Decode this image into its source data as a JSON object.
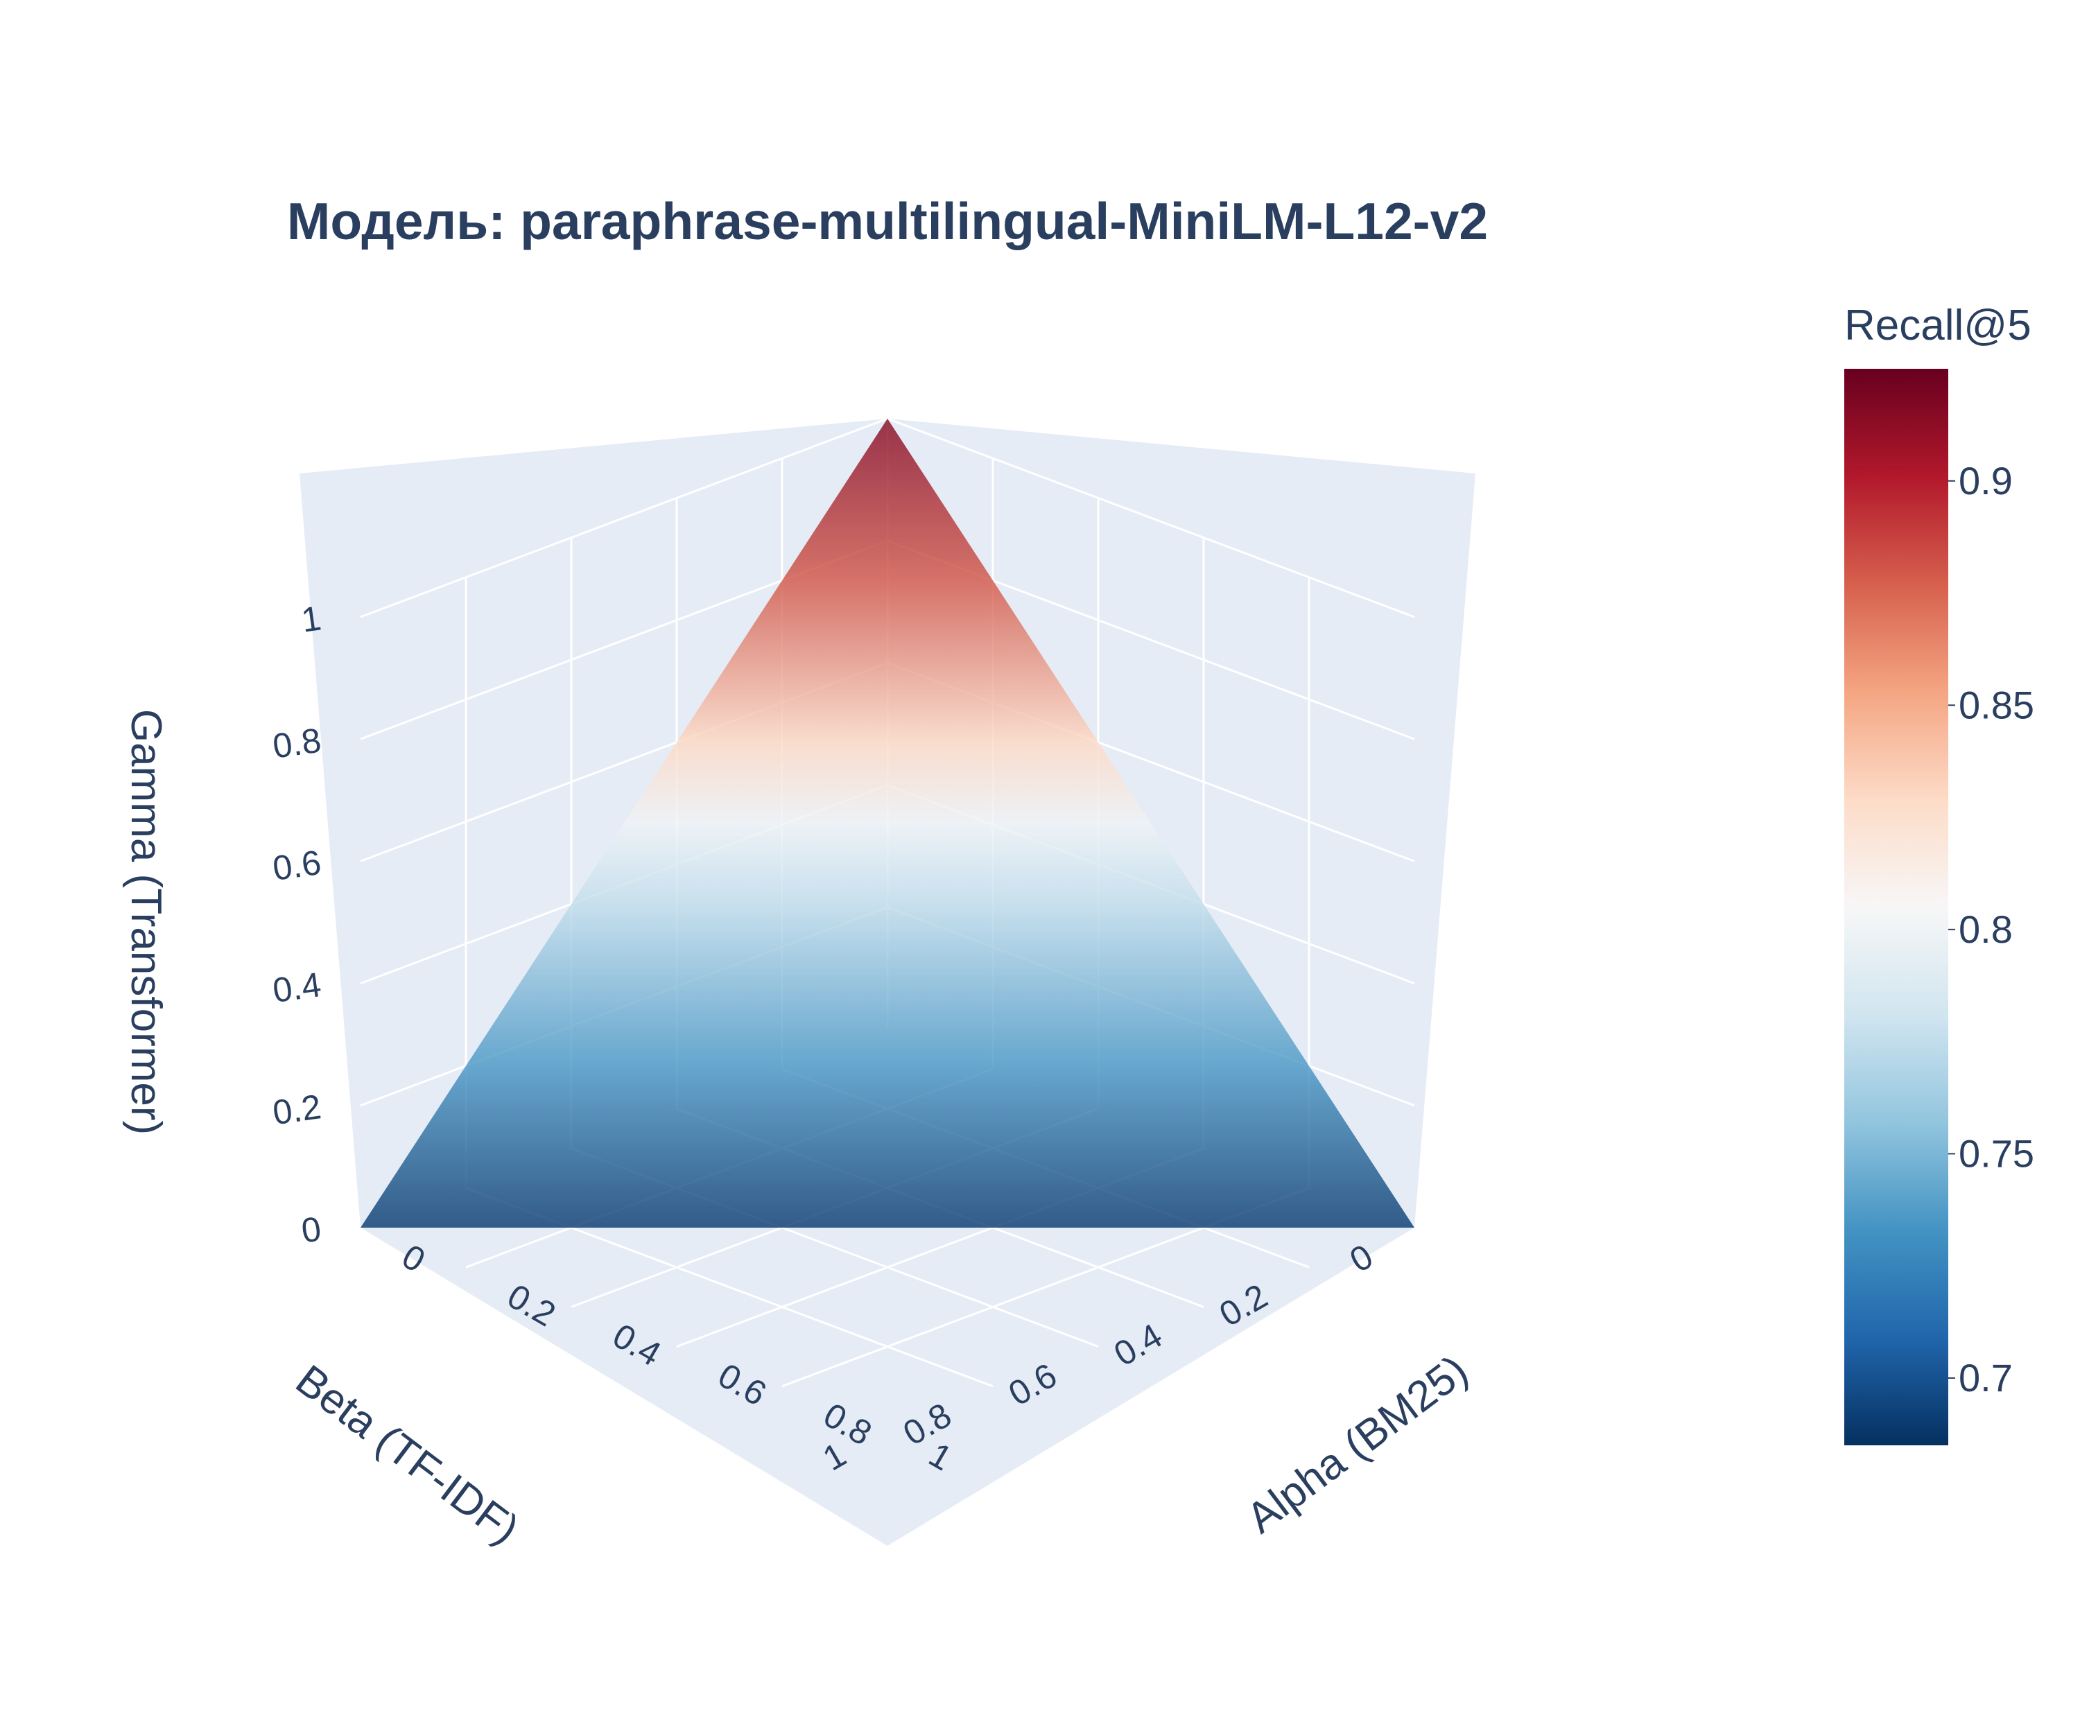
{
  "chart_data": {
    "type": "surface",
    "title": "Модель: paraphrase-multilingual-MiniLM-L12-v2",
    "axes": {
      "alpha": {
        "label": "Alpha (BM25)",
        "ticks": [
          "0",
          "0.2",
          "0.4",
          "0.6",
          "0.8",
          "1"
        ],
        "range": [
          0,
          1
        ]
      },
      "beta": {
        "label": "Beta (TF-IDF)",
        "ticks": [
          "0",
          "0.2",
          "0.4",
          "0.6",
          "0.8",
          "1"
        ],
        "range": [
          0,
          1
        ]
      },
      "gamma": {
        "label": "Gamma (Transformer)",
        "ticks": [
          "0",
          "0.2",
          "0.4",
          "0.6",
          "0.8",
          "1"
        ],
        "range": [
          0,
          1
        ]
      }
    },
    "surface": {
      "description_values": "Simplex plane alpha + beta + gamma = 1, colored by Recall@5",
      "vertices": [
        {
          "alpha": 1,
          "beta": 0,
          "gamma": 0
        },
        {
          "alpha": 0,
          "beta": 1,
          "gamma": 0
        },
        {
          "alpha": 0,
          "beta": 0,
          "gamma": 1
        }
      ],
      "recall_by_gamma": [
        {
          "gamma": 0.0,
          "recall": 0.69
        },
        {
          "gamma": 0.2,
          "recall": 0.735
        },
        {
          "gamma": 0.4,
          "recall": 0.775
        },
        {
          "gamma": 0.5,
          "recall": 0.8
        },
        {
          "gamma": 0.6,
          "recall": 0.83
        },
        {
          "gamma": 0.8,
          "recall": 0.88
        },
        {
          "gamma": 1.0,
          "recall": 0.915
        }
      ]
    },
    "colorbar": {
      "title": "Recall@5",
      "range": [
        0.685,
        0.925
      ],
      "ticks": [
        "0.7",
        "0.75",
        "0.8",
        "0.85",
        "0.9"
      ],
      "tick_values": [
        0.7,
        0.75,
        0.8,
        0.85,
        0.9
      ],
      "colorscale": [
        "#053061",
        "#2166ac",
        "#4393c3",
        "#92c5de",
        "#d1e5f0",
        "#f7f7f7",
        "#fddbc7",
        "#f4a582",
        "#d6604d",
        "#b2182b",
        "#67001f"
      ]
    },
    "scene_background": "#e5ecf6",
    "grid_color": "#ffffff"
  }
}
